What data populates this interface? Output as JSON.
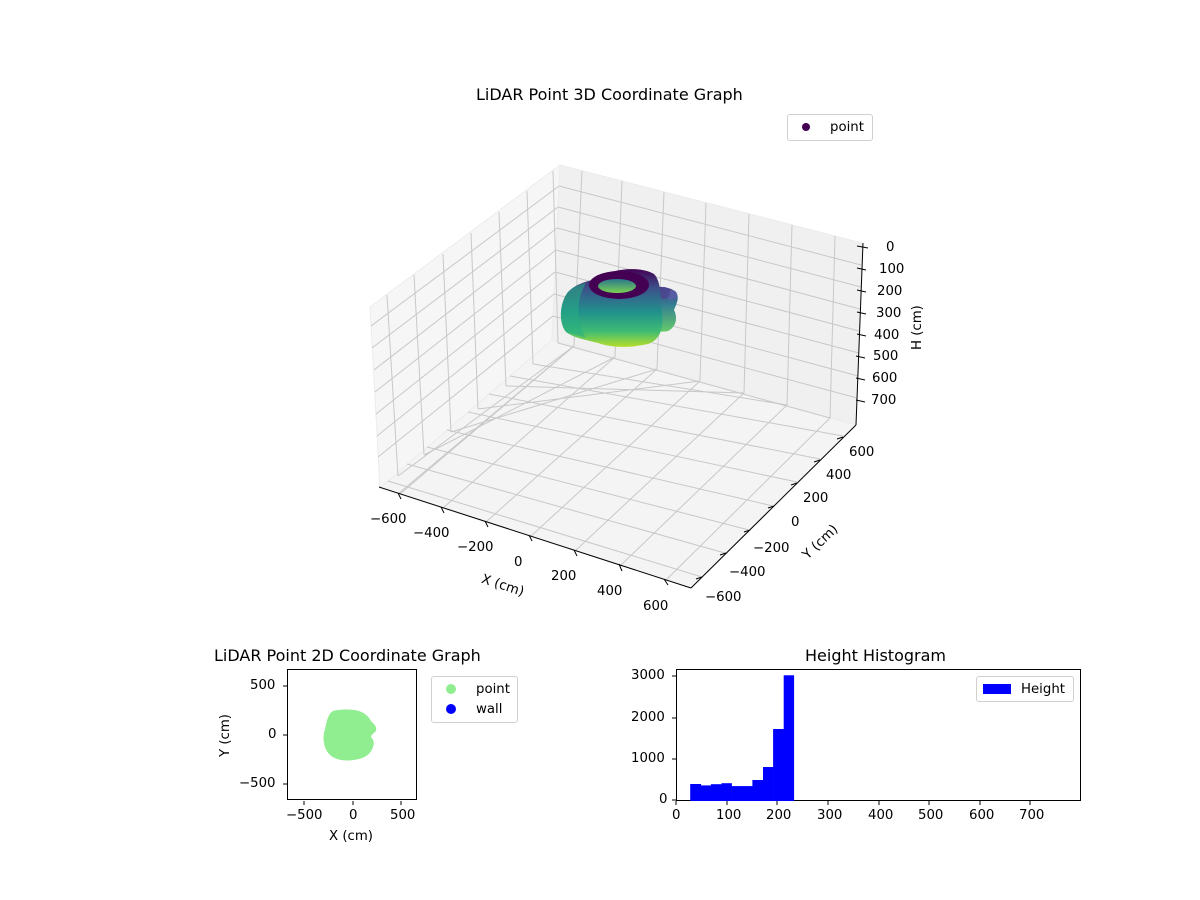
{
  "figure": {
    "colors": {
      "viridis_dark": "#440154",
      "viridis_mid": "#31688e",
      "viridis_teal": "#21918c",
      "viridis_green": "#5ec962",
      "viridis_yellow": "#b5de2b",
      "point_2d": "#90ee90",
      "wall_2d": "#0000ff",
      "hist_bar": "#0000ff",
      "pane": "#f2f2f2",
      "grid": "#cccccc"
    }
  },
  "chart_data": [
    {
      "type": "scatter",
      "projection": "3d",
      "title": "LiDAR Point 3D Coordinate Graph",
      "xlabel": "X (cm)",
      "ylabel": "Y (cm)",
      "zlabel": "H (cm)",
      "xticks": [
        "−600",
        "−400",
        "−200",
        "0",
        "200",
        "400",
        "600"
      ],
      "yticks": [
        "−600",
        "−400",
        "−200",
        "0",
        "200",
        "400",
        "600"
      ],
      "zticks": [
        "0",
        "100",
        "200",
        "300",
        "400",
        "500",
        "600",
        "700"
      ],
      "xlim": [
        -700,
        700
      ],
      "ylim": [
        -700,
        700
      ],
      "zlim": [
        780,
        0
      ],
      "z_inverted": true,
      "colormap": "viridis",
      "legend": [
        {
          "label": "point",
          "color": "#440154"
        }
      ],
      "legend_position": "upper right",
      "grid": true,
      "description": "Dense point cloud roughly centered near origin, ring-shaped top (height ~30 cm) spanning approx X -250..250, Y -250..250, H ~20..230 cm"
    },
    {
      "type": "scatter",
      "title": "LiDAR Point 2D Coordinate Graph",
      "xlabel": "X (cm)",
      "ylabel": "Y (cm)",
      "xticks": [
        "−500",
        "0",
        "500"
      ],
      "yticks": [
        "−500",
        "0",
        "500"
      ],
      "xlim": [
        -680,
        680
      ],
      "ylim": [
        -680,
        680
      ],
      "series": [
        {
          "name": "point",
          "color": "#90ee90",
          "extent": {
            "x": [
              -270,
              230
            ],
            "y": [
              -280,
              240
            ]
          }
        },
        {
          "name": "wall",
          "color": "#0000ff",
          "extent": null
        }
      ],
      "legend": [
        {
          "label": "point",
          "color": "#90ee90"
        },
        {
          "label": "wall",
          "color": "#0000ff"
        }
      ],
      "legend_position": "outside right",
      "grid": false
    },
    {
      "type": "bar",
      "subtype": "histogram",
      "title": "Height Histogram",
      "xlabel": "",
      "ylabel": "",
      "xticks": [
        "0",
        "100",
        "200",
        "300",
        "400",
        "500",
        "600",
        "700"
      ],
      "yticks": [
        "0",
        "1000",
        "2000",
        "3000"
      ],
      "xlim": [
        0,
        795
      ],
      "ylim": [
        0,
        3170
      ],
      "bin_edges": [
        28,
        49,
        69,
        90,
        110,
        131,
        151,
        172,
        192,
        213,
        233
      ],
      "categories": [
        "28-49",
        "49-69",
        "69-90",
        "90-110",
        "110-131",
        "131-151",
        "151-172",
        "172-192",
        "192-213",
        "213-233"
      ],
      "values": [
        410,
        375,
        405,
        430,
        360,
        360,
        505,
        820,
        1735,
        3030
      ],
      "legend": [
        {
          "label": "Height",
          "color": "#0000ff"
        }
      ],
      "legend_position": "upper right",
      "grid": false
    }
  ],
  "labels": {
    "title3d": "LiDAR Point 3D Coordinate Graph",
    "legend3d_point": "point",
    "x3d": "X (cm)",
    "y3d": "Y (cm)",
    "z3d": "H (cm)",
    "title2d": "LiDAR Point 2D Coordinate Graph",
    "x2d": "X (cm)",
    "y2d": "Y (cm)",
    "legend2d_point": "point",
    "legend2d_wall": "wall",
    "titleh": "Height Histogram",
    "legendh": "Height"
  }
}
